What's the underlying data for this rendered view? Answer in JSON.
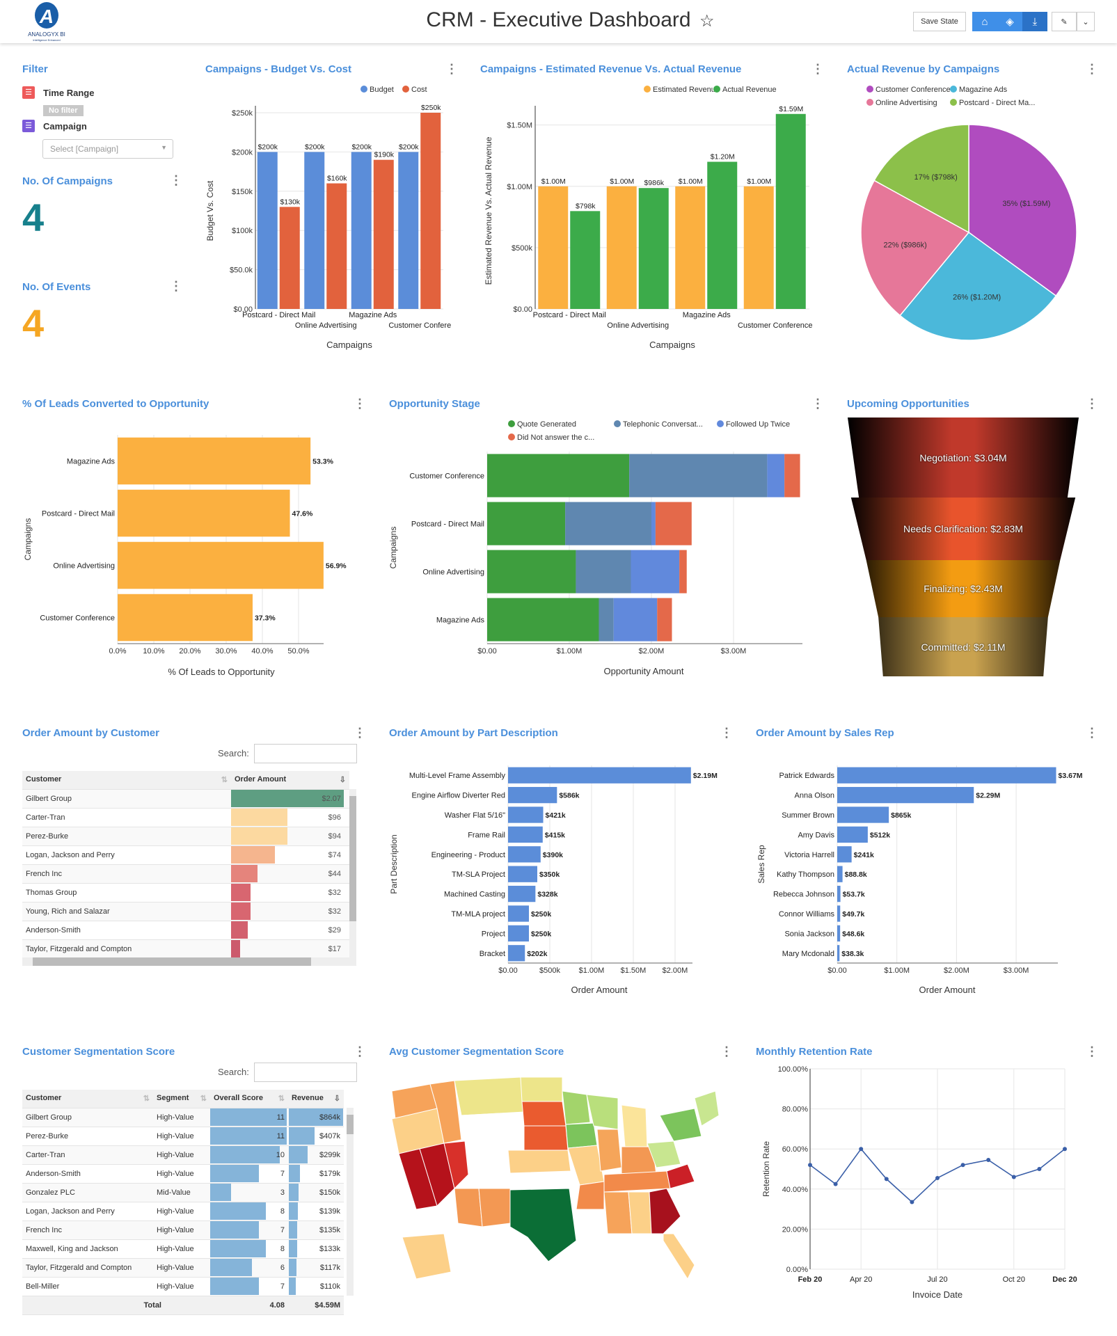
{
  "header": {
    "title": "CRM - Executive Dashboard",
    "logo_text": "ANALOGYX BI",
    "logo_tagline": "Intelligence Enhanced",
    "save_state": "Save State",
    "icons": [
      "home-icon",
      "eraser-icon",
      "download-icon",
      "edit-icon",
      "chevron-down-icon"
    ],
    "star_icon": "star-icon"
  },
  "colors": {
    "accent": "#4a8fdb",
    "toolbar": "#3f8fe8",
    "campaigns_kpi": "#17808c",
    "events_kpi": "#f5a623"
  },
  "filter": {
    "title": "Filter",
    "time_range_label": "Time Range",
    "time_range_value": "No filter",
    "campaign_label": "Campaign",
    "campaign_placeholder": "Select [Campaign]"
  },
  "kpis": [
    {
      "title": "No. Of Campaigns",
      "value": "4"
    },
    {
      "title": "No. Of Events",
      "value": "4"
    }
  ],
  "budget_cost": {
    "title": "Campaigns - Budget Vs. Cost"
  },
  "revenue": {
    "title": "Campaigns - Estimated Revenue Vs. Actual Revenue"
  },
  "pie": {
    "title": "Actual Revenue by Campaigns"
  },
  "leads": {
    "title": "% Of Leads Converted to Opportunity"
  },
  "opp": {
    "title": "Opportunity Stage"
  },
  "funnel": {
    "title": "Upcoming Opportunities",
    "stages": [
      {
        "label": "Negotiation: $3.04M",
        "value": 3.04,
        "color": "#c0392b"
      },
      {
        "label": "Needs Clarification: $2.83M",
        "value": 2.83,
        "color": "#e8542c"
      },
      {
        "label": "Finalizing: $2.43M",
        "value": 2.43,
        "color": "#f39c12"
      },
      {
        "label": "Committed: $2.11M",
        "value": 2.11,
        "color": "#c9a24f"
      }
    ]
  },
  "order_customer": {
    "title": "Order Amount by Customer",
    "search_label": "Search:",
    "columns": [
      "Customer",
      "Order Amount"
    ],
    "rows": [
      {
        "customer": "Gilbert Group",
        "amount": "$2.07",
        "fill": 1.0,
        "color": "#5e9e82"
      },
      {
        "customer": "Carter-Tran",
        "amount": "$96",
        "fill": 0.5,
        "color": "#fcd9a0"
      },
      {
        "customer": "Perez-Burke",
        "amount": "$94",
        "fill": 0.5,
        "color": "#fcd9a0"
      },
      {
        "customer": "Logan, Jackson and Perry",
        "amount": "$74",
        "fill": 0.39,
        "color": "#f5b58e"
      },
      {
        "customer": "French Inc",
        "amount": "$44",
        "fill": 0.235,
        "color": "#e5847c"
      },
      {
        "customer": "Thomas Group",
        "amount": "$32",
        "fill": 0.17,
        "color": "#d86670"
      },
      {
        "customer": "Young, Rich and Salazar",
        "amount": "$32",
        "fill": 0.17,
        "color": "#d86670"
      },
      {
        "customer": "Anderson-Smith",
        "amount": "$29",
        "fill": 0.15,
        "color": "#d2606e"
      },
      {
        "customer": "Taylor, Fitzgerald and Compton",
        "amount": "$17",
        "fill": 0.08,
        "color": "#cc5a6c"
      }
    ]
  },
  "order_part": {
    "title": "Order Amount by Part Description"
  },
  "order_rep": {
    "title": "Order Amount by Sales Rep"
  },
  "segmentation": {
    "title": "Customer Segmentation Score",
    "search_label": "Search:",
    "columns": [
      "Customer",
      "Segment",
      "Overall Score",
      "Revenue"
    ],
    "rows": [
      {
        "customer": "Gilbert Group",
        "segment": "High-Value",
        "score": 11,
        "revenue": "$864k",
        "rev": 864
      },
      {
        "customer": "Perez-Burke",
        "segment": "High-Value",
        "score": 11,
        "revenue": "$407k",
        "rev": 407
      },
      {
        "customer": "Carter-Tran",
        "segment": "High-Value",
        "score": 10,
        "revenue": "$299k",
        "rev": 299
      },
      {
        "customer": "Anderson-Smith",
        "segment": "High-Value",
        "score": 7,
        "revenue": "$179k",
        "rev": 179
      },
      {
        "customer": "Gonzalez PLC",
        "segment": "Mid-Value",
        "score": 3,
        "revenue": "$150k",
        "rev": 150
      },
      {
        "customer": "Logan, Jackson and Perry",
        "segment": "High-Value",
        "score": 8,
        "revenue": "$139k",
        "rev": 139
      },
      {
        "customer": "French Inc",
        "segment": "High-Value",
        "score": 7,
        "revenue": "$135k",
        "rev": 135
      },
      {
        "customer": "Maxwell, King and Jackson",
        "segment": "High-Value",
        "score": 8,
        "revenue": "$133k",
        "rev": 133
      },
      {
        "customer": "Taylor, Fitzgerald and Compton",
        "segment": "High-Value",
        "score": 6,
        "revenue": "$117k",
        "rev": 117
      },
      {
        "customer": "Bell-Miller",
        "segment": "High-Value",
        "score": 7,
        "revenue": "$110k",
        "rev": 110
      }
    ],
    "total_label": "Total",
    "total_score": "4.08",
    "total_revenue": "$4.59M"
  },
  "map": {
    "title": "Avg Customer Segmentation Score"
  },
  "retention": {
    "title": "Monthly Retention Rate"
  },
  "chart_data": [
    {
      "id": "budget",
      "type": "bar",
      "categories": [
        "Postcard - Direct Mail",
        "Online Advertising",
        "Magazine Ads",
        "Customer Confere"
      ],
      "series": [
        {
          "name": "Budget",
          "color": "#5b8dd9",
          "values": [
            200,
            200,
            200,
            200
          ],
          "labels": [
            "$200k",
            "$200k",
            "$200k",
            "$200k"
          ]
        },
        {
          "name": "Cost",
          "color": "#e2623d",
          "values": [
            130,
            160,
            190,
            250
          ],
          "labels": [
            "$130k",
            "$160k",
            "$190k",
            "$250k"
          ]
        }
      ],
      "ylim": [
        0,
        250
      ],
      "yticks": [
        "$0.00",
        "$50.0k",
        "$100k",
        "$150k",
        "$200k",
        "$250k"
      ],
      "xlabel": "Campaigns",
      "ylabel": "Budget Vs. Cost",
      "legend": "top"
    },
    {
      "id": "revenue",
      "type": "bar",
      "categories": [
        "Postcard - Direct Mail",
        "Online Advertising",
        "Magazine Ads",
        "Customer Conference"
      ],
      "series": [
        {
          "name": "Estimated Revenue",
          "color": "#fbb040",
          "values": [
            1.0,
            1.0,
            1.0,
            1.0
          ],
          "labels": [
            "$1.00M",
            "$1.00M",
            "$1.00M",
            "$1.00M"
          ]
        },
        {
          "name": "Actual Revenue",
          "color": "#3cab4a",
          "values": [
            0.798,
            0.986,
            1.2,
            1.59
          ],
          "labels": [
            "$798k",
            "$986k",
            "$1.20M",
            "$1.59M"
          ]
        }
      ],
      "ylim": [
        0,
        1.6
      ],
      "ytick_values": [
        0,
        0.5,
        1.0,
        1.5
      ],
      "yticks": [
        "$0.00",
        "$500k",
        "$1.00M",
        "$1.50M"
      ],
      "xlabel": "Campaigns",
      "ylabel": "Estimated Revenue Vs. Actual Revenue",
      "legend": "top"
    },
    {
      "id": "pie",
      "type": "pie",
      "slices": [
        {
          "name": "Customer Conference",
          "value": 35,
          "label": "35% ($1.59M)",
          "color": "#b04cbf"
        },
        {
          "name": "Magazine Ads",
          "value": 26,
          "label": "26% ($1.20M)",
          "color": "#4bb8da"
        },
        {
          "name": "Online Advertising",
          "value": 22,
          "label": "22% ($986k)",
          "color": "#e67799"
        },
        {
          "name": "Postcard - Direct Ma...",
          "value": 17,
          "label": "17% ($798k)",
          "color": "#8cc04a"
        }
      ],
      "legend": "top"
    },
    {
      "id": "leads",
      "type": "bar",
      "orientation": "horizontal",
      "categories": [
        "Magazine Ads",
        "Postcard - Direct Mail",
        "Online Advertising",
        "Customer Conference"
      ],
      "values": [
        53.3,
        47.6,
        56.9,
        37.3
      ],
      "labels": [
        "53.3%",
        "47.6%",
        "56.9%",
        "37.3%"
      ],
      "color": "#fbb040",
      "xticks": [
        "0.0%",
        "10.0%",
        "20.0%",
        "30.0%",
        "40.0%",
        "50.0%"
      ],
      "xlabel": "% Of Leads to Opportunity",
      "ylabel": "Campaigns"
    },
    {
      "id": "opp",
      "type": "bar",
      "orientation": "horizontal",
      "stacked": true,
      "categories": [
        "Customer Conference",
        "Postcard - Direct Mail",
        "Online Advertising",
        "Magazine Ads"
      ],
      "series": [
        {
          "name": "Quote Generated",
          "color": "#3e9e3e",
          "values": [
            1.73,
            0.95,
            1.08,
            1.36
          ]
        },
        {
          "name": "Telephonic Conversat...",
          "color": "#5f87b0",
          "values": [
            1.68,
            1.05,
            0.67,
            0.18
          ]
        },
        {
          "name": "Followed Up Twice",
          "color": "#6189dc",
          "values": [
            0.21,
            0.05,
            0.59,
            0.53
          ]
        },
        {
          "name": "Did Not answer the c...",
          "color": "#e4694a",
          "values": [
            0.19,
            0.44,
            0.09,
            0.18
          ]
        }
      ],
      "xticks": [
        "$0.00",
        "$1.00M",
        "$2.00M",
        "$3.00M"
      ],
      "xlabel": "Opportunity Amount",
      "ylabel": "Campaigns",
      "legend": "top"
    },
    {
      "id": "part",
      "type": "bar",
      "orientation": "horizontal",
      "categories": [
        "Multi-Level Frame Assembly",
        "Engine Airflow Diverter Red",
        "Washer Flat 5/16\"",
        "Frame Rail",
        "Engineering - Product",
        "TM-SLA Project",
        "Machined Casting",
        "TM-MLA project",
        "Project",
        "Bracket"
      ],
      "values": [
        2.19,
        0.586,
        0.421,
        0.415,
        0.39,
        0.35,
        0.328,
        0.25,
        0.25,
        0.202
      ],
      "labels": [
        "$2.19M",
        "$586k",
        "$421k",
        "$415k",
        "$390k",
        "$350k",
        "$328k",
        "$250k",
        "$250k",
        "$202k"
      ],
      "color": "#5b8dd9",
      "xticks": [
        "$0.00",
        "$500k",
        "$1.00M",
        "$1.50M",
        "$2.00M"
      ],
      "xtick_values": [
        0,
        0.5,
        1,
        1.5,
        2
      ],
      "xlabel": "Order Amount",
      "ylabel": "Part Description"
    },
    {
      "id": "rep",
      "type": "bar",
      "orientation": "horizontal",
      "categories": [
        "Patrick Edwards",
        "Anna Olson",
        "Summer Brown",
        "Amy Davis",
        "Victoria Harrell",
        "Kathy Thompson",
        "Rebecca Johnson",
        "Connor Williams",
        "Sonia Jackson",
        "Mary Mcdonald"
      ],
      "values": [
        3.67,
        2.29,
        0.865,
        0.512,
        0.241,
        0.0888,
        0.0537,
        0.0497,
        0.0486,
        0.0383
      ],
      "labels": [
        "$3.67M",
        "$2.29M",
        "$865k",
        "$512k",
        "$241k",
        "$88.8k",
        "$53.7k",
        "$49.7k",
        "$48.6k",
        "$38.3k"
      ],
      "color": "#5b8dd9",
      "xticks": [
        "$0.00",
        "$1.00M",
        "$2.00M",
        "$3.00M"
      ],
      "xtick_values": [
        0,
        1,
        2,
        3
      ],
      "xlabel": "Order Amount",
      "ylabel": "Sales Rep"
    },
    {
      "id": "retention",
      "type": "line",
      "x": [
        "Feb 20",
        "Mar 20",
        "Apr 20",
        "May 20",
        "Jun 20",
        "Jul 20",
        "Aug 20",
        "Sep 20",
        "Oct 20",
        "Nov 20",
        "Dec 20"
      ],
      "values": [
        52,
        42.5,
        60,
        45,
        33.5,
        45.5,
        52,
        54.5,
        46,
        50,
        60
      ],
      "xtick_labels": [
        "Feb 20",
        "Apr 20",
        "Jul 20",
        "Oct 20",
        "Dec 20"
      ],
      "yticks": [
        "0.00%",
        "20.00%",
        "40.00%",
        "60.00%",
        "80.00%",
        "100.00%"
      ],
      "ylim": [
        0,
        100
      ],
      "xlabel": "Invoice Date",
      "ylabel": "Retention Rate",
      "color": "#3a5fa8",
      "grid": true
    }
  ]
}
